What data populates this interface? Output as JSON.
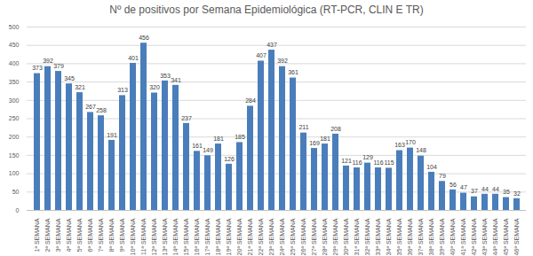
{
  "chart_data": {
    "type": "bar",
    "title": "Nº de positivos por Semana Epidemiológica (RT-PCR, CLIN E TR)",
    "categories": [
      "1ª SEMANA",
      "2ª SEMANA",
      "3ª SEMANA",
      "4ª SEMANA",
      "5ª SEMANA",
      "6ª SEMANA",
      "7ª SEMANA",
      "8ª SEMANA",
      "9ª SEMANA",
      "10ª SEMANA",
      "11ª SEMANA",
      "12ª SEMANA",
      "13ª SEMANA",
      "14ª SEMANA",
      "15ª SEMANA",
      "16ª SEMANA",
      "17ª SEMANA",
      "18ª SEMANA",
      "19ª SEMANA",
      "20ª SEMANA",
      "21ª SEMANA",
      "22ª SEMANA",
      "23ª SEMANA",
      "24ª SEMANA",
      "25ª SEMANA",
      "26ª SEMANA",
      "27ª SEMANA",
      "28ª SEMANA",
      "29ª SEMANA",
      "30ª SEMANA",
      "31ª SEMANA",
      "32ª SEMANA",
      "33ª SEMANA",
      "34ª SEMANA",
      "35ª SEMANA",
      "36ª SEMANA",
      "37ª SEMANA",
      "38ª SEMANA",
      "39ª SEMANA",
      "40ª SEMANA",
      "41ª SEMANA",
      "42ª SEMANA",
      "43ª SEMANA",
      "44ª SEMANA",
      "45ª SEMANA",
      "46ª SEMANA"
    ],
    "values": [
      373,
      392,
      379,
      345,
      321,
      267,
      258,
      191,
      313,
      401,
      456,
      320,
      353,
      341,
      237,
      161,
      149,
      181,
      126,
      185,
      284,
      407,
      437,
      392,
      361,
      211,
      169,
      181,
      208,
      121,
      116,
      129,
      116,
      115,
      163,
      170,
      148,
      104,
      79,
      56,
      47,
      37,
      44,
      44,
      35,
      32
    ],
    "color": "#4a7ebb",
    "ylim": [
      0,
      500
    ],
    "yticks": [
      0,
      50,
      100,
      150,
      200,
      250,
      300,
      350,
      400,
      450,
      500
    ],
    "grid": true,
    "data_labels": true
  }
}
